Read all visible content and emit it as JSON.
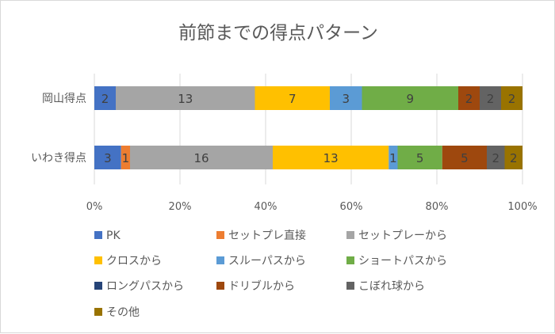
{
  "chart_data": {
    "type": "bar",
    "orientation": "horizontal",
    "stacked": "percent",
    "title": "前節までの得点パターン",
    "categories": [
      "岡山得点",
      "いわき得点"
    ],
    "series": [
      {
        "name": "PK",
        "color": "#4472C4",
        "values": [
          2,
          3
        ]
      },
      {
        "name": "セットプレ直接",
        "color": "#ED7D31",
        "values": [
          0,
          1
        ]
      },
      {
        "name": "セットプレーから",
        "color": "#A5A5A5",
        "values": [
          13,
          16
        ]
      },
      {
        "name": "クロスから",
        "color": "#FFC000",
        "values": [
          7,
          13
        ]
      },
      {
        "name": "スルーパスから",
        "color": "#5B9BD5",
        "values": [
          3,
          1
        ]
      },
      {
        "name": "ショートパスから",
        "color": "#70AD47",
        "values": [
          9,
          5
        ]
      },
      {
        "name": "ロングパスから",
        "color": "#264478",
        "values": [
          0,
          0
        ]
      },
      {
        "name": "ドリブルから",
        "color": "#9E480E",
        "values": [
          2,
          5
        ]
      },
      {
        "name": "こぼれ球から",
        "color": "#636363",
        "values": [
          2,
          2
        ]
      },
      {
        "name": "その他",
        "color": "#997300",
        "values": [
          2,
          2
        ]
      }
    ],
    "xticks": [
      "0%",
      "20%",
      "40%",
      "60%",
      "80%",
      "100%"
    ],
    "xlim": [
      0,
      1
    ],
    "grid": true,
    "legend": "bottom"
  }
}
